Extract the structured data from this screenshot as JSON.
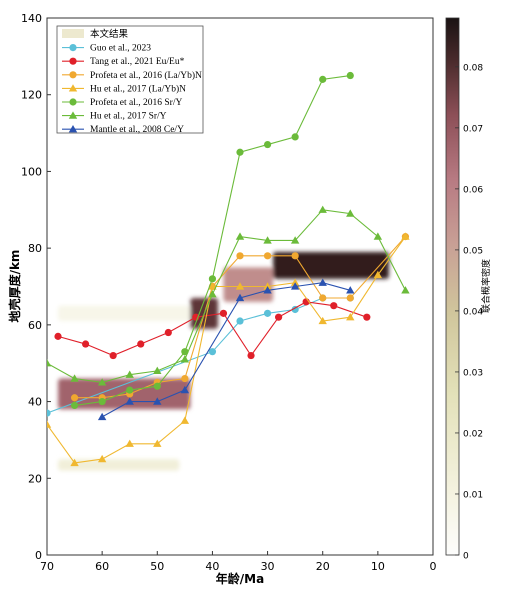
{
  "chart_data": {
    "type": "line",
    "xlabel": "年龄/Ma",
    "ylabel": "地壳厚度/km",
    "xlim": [
      70,
      0
    ],
    "ylim": [
      0,
      140
    ],
    "x_ticks": [
      "70",
      "60",
      "50",
      "40",
      "30",
      "20",
      "10",
      "0"
    ],
    "y_ticks": [
      "0",
      "20",
      "40",
      "60",
      "80",
      "100",
      "120",
      "140"
    ],
    "legend": {
      "position": "top-left"
    },
    "heatmap": {
      "name": "本文结果",
      "colorbar_label": "联合概率密度",
      "colorbar_ticks": [
        "0",
        "0.01",
        "0.02",
        "0.03",
        "0.04",
        "0.05",
        "0.06",
        "0.07",
        "0.08"
      ],
      "colorbar_range": [
        0,
        0.088
      ],
      "bands": [
        {
          "x0": 68,
          "x1": 44,
          "y0": 38,
          "y1": 46,
          "density": 0.07
        },
        {
          "x0": 68,
          "x1": 46,
          "y0": 22,
          "y1": 25,
          "density": 0.015
        },
        {
          "x0": 68,
          "x1": 44,
          "y0": 61,
          "y1": 65,
          "density": 0.008
        },
        {
          "x0": 44,
          "x1": 39,
          "y0": 59,
          "y1": 67,
          "density": 0.08
        },
        {
          "x0": 38,
          "x1": 29,
          "y0": 66,
          "y1": 75,
          "density": 0.06
        },
        {
          "x0": 29,
          "x1": 8,
          "y0": 72,
          "y1": 79,
          "density": 0.085
        }
      ]
    },
    "series": [
      {
        "name": "Guo et al., 2023",
        "color": "#5bc0d8",
        "marker": "circle",
        "x": [
          70,
          40,
          35,
          30,
          25,
          20,
          15
        ],
        "y": [
          37,
          53,
          61,
          63,
          64,
          67,
          67
        ]
      },
      {
        "name": "Tang et al., 2021 Eu/Eu*",
        "color": "#e0202a",
        "marker": "circle",
        "x": [
          68,
          63,
          58,
          53,
          48,
          43,
          38,
          33,
          28,
          23,
          18,
          12
        ],
        "y": [
          57,
          55,
          52,
          55,
          58,
          62,
          63,
          52,
          62,
          66,
          65,
          62
        ]
      },
      {
        "name": "Profeta et al., 2016 (La/Yb)N",
        "color": "#f0a830",
        "marker": "circle",
        "x": [
          65,
          60,
          55,
          50,
          45,
          40,
          35,
          30,
          25,
          20,
          15,
          5
        ],
        "y": [
          41,
          41,
          42,
          45,
          46,
          70,
          78,
          78,
          78,
          67,
          67,
          83
        ]
      },
      {
        "name": "Hu et al., 2017 (La/Yb)N",
        "color": "#f0b830",
        "marker": "triangle",
        "x": [
          70,
          65,
          60,
          55,
          50,
          45,
          40,
          35,
          30,
          25,
          20,
          15,
          10,
          5
        ],
        "y": [
          34,
          24,
          25,
          29,
          29,
          35,
          70,
          70,
          70,
          71,
          61,
          62,
          73,
          83
        ]
      },
      {
        "name": "Profeta et al., 2016 Sr/Y",
        "color": "#6bbb3a",
        "marker": "circle",
        "x": [
          65,
          60,
          55,
          50,
          45,
          40,
          35,
          30,
          25,
          20,
          15
        ],
        "y": [
          39,
          40,
          43,
          44,
          53,
          72,
          105,
          107,
          109,
          124,
          125
        ]
      },
      {
        "name": "Hu et al., 2017 Sr/Y",
        "color": "#6bbb3a",
        "marker": "triangle",
        "x": [
          70,
          65,
          60,
          55,
          50,
          45,
          40,
          35,
          30,
          25,
          20,
          15,
          10,
          5
        ],
        "y": [
          50,
          46,
          45,
          47,
          48,
          51,
          68,
          83,
          82,
          82,
          90,
          89,
          83,
          69
        ]
      },
      {
        "name": "Mantle et al., 2008 Ce/Y",
        "color": "#2a52b0",
        "marker": "triangle",
        "x": [
          60,
          55,
          50,
          45,
          35,
          30,
          25,
          20,
          15
        ],
        "y": [
          36,
          40,
          40,
          43,
          67,
          69,
          70,
          71,
          69
        ]
      }
    ]
  }
}
